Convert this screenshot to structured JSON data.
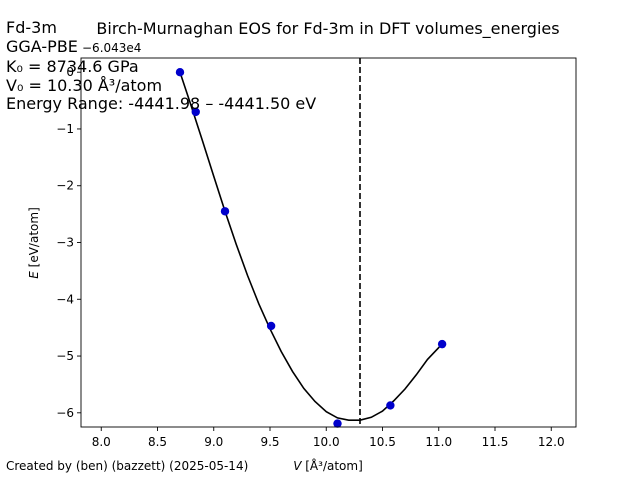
{
  "figure": {
    "title": "Birch-Murnaghan EOS for Fd-3m in DFT volumes_energies",
    "info_lines": [
      "Fd-3m",
      "GGA-PBE",
      "K₀ = 8734.6 GPa",
      "V₀ = 10.30 Å³/atom",
      "Energy Range: -4441.98 – -4441.50 eV"
    ],
    "footer": "Created by (ben) (bazzett) (2025-05-14)",
    "offset_text": "−6.043e4"
  },
  "chart_data": {
    "type": "scatter",
    "title": "Birch-Murnaghan EOS for Fd-3m in DFT volumes_energies",
    "xlabel": "V [Å³/atom]",
    "ylabel": "E [eV/atom]",
    "xlim": [
      7.82,
      12.22
    ],
    "ylim": [
      -6.25,
      0.25
    ],
    "y_offset": -60430,
    "xticks": [
      8.0,
      8.5,
      9.0,
      9.5,
      10.0,
      10.5,
      11.0,
      11.5,
      12.0
    ],
    "xtick_labels": [
      "8.0",
      "8.5",
      "9.0",
      "9.5",
      "10.0",
      "10.5",
      "11.0",
      "11.5",
      "12.0"
    ],
    "yticks": [
      0,
      -1,
      -2,
      -3,
      -4,
      -5,
      -6
    ],
    "ytick_labels": [
      "0",
      "−1",
      "−2",
      "−3",
      "−4",
      "−5",
      "−6"
    ],
    "grid": false,
    "series": [
      {
        "kind": "points",
        "color": "#0000cc",
        "x": [
          8.7,
          8.84,
          9.1,
          9.51,
          10.1,
          10.57,
          11.03
        ],
        "y": [
          0.0,
          -0.7,
          -2.45,
          -4.47,
          -6.19,
          -5.87,
          -4.79
        ]
      },
      {
        "kind": "fit",
        "color": "#000000",
        "x": [
          8.7,
          8.8,
          8.9,
          9.0,
          9.1,
          9.2,
          9.3,
          9.4,
          9.5,
          9.6,
          9.7,
          9.8,
          9.9,
          10.0,
          10.1,
          10.2,
          10.3,
          10.4,
          10.5,
          10.6,
          10.7,
          10.8,
          10.9,
          11.03
        ],
        "y": [
          0.0,
          -0.6,
          -1.21,
          -1.83,
          -2.45,
          -3.03,
          -3.58,
          -4.08,
          -4.52,
          -4.92,
          -5.27,
          -5.57,
          -5.8,
          -5.98,
          -6.09,
          -6.13,
          -6.13,
          -6.08,
          -5.97,
          -5.79,
          -5.58,
          -5.33,
          -5.06,
          -4.79
        ]
      }
    ],
    "vline": {
      "x": 10.3,
      "style": "dashed",
      "color": "#000000"
    }
  }
}
